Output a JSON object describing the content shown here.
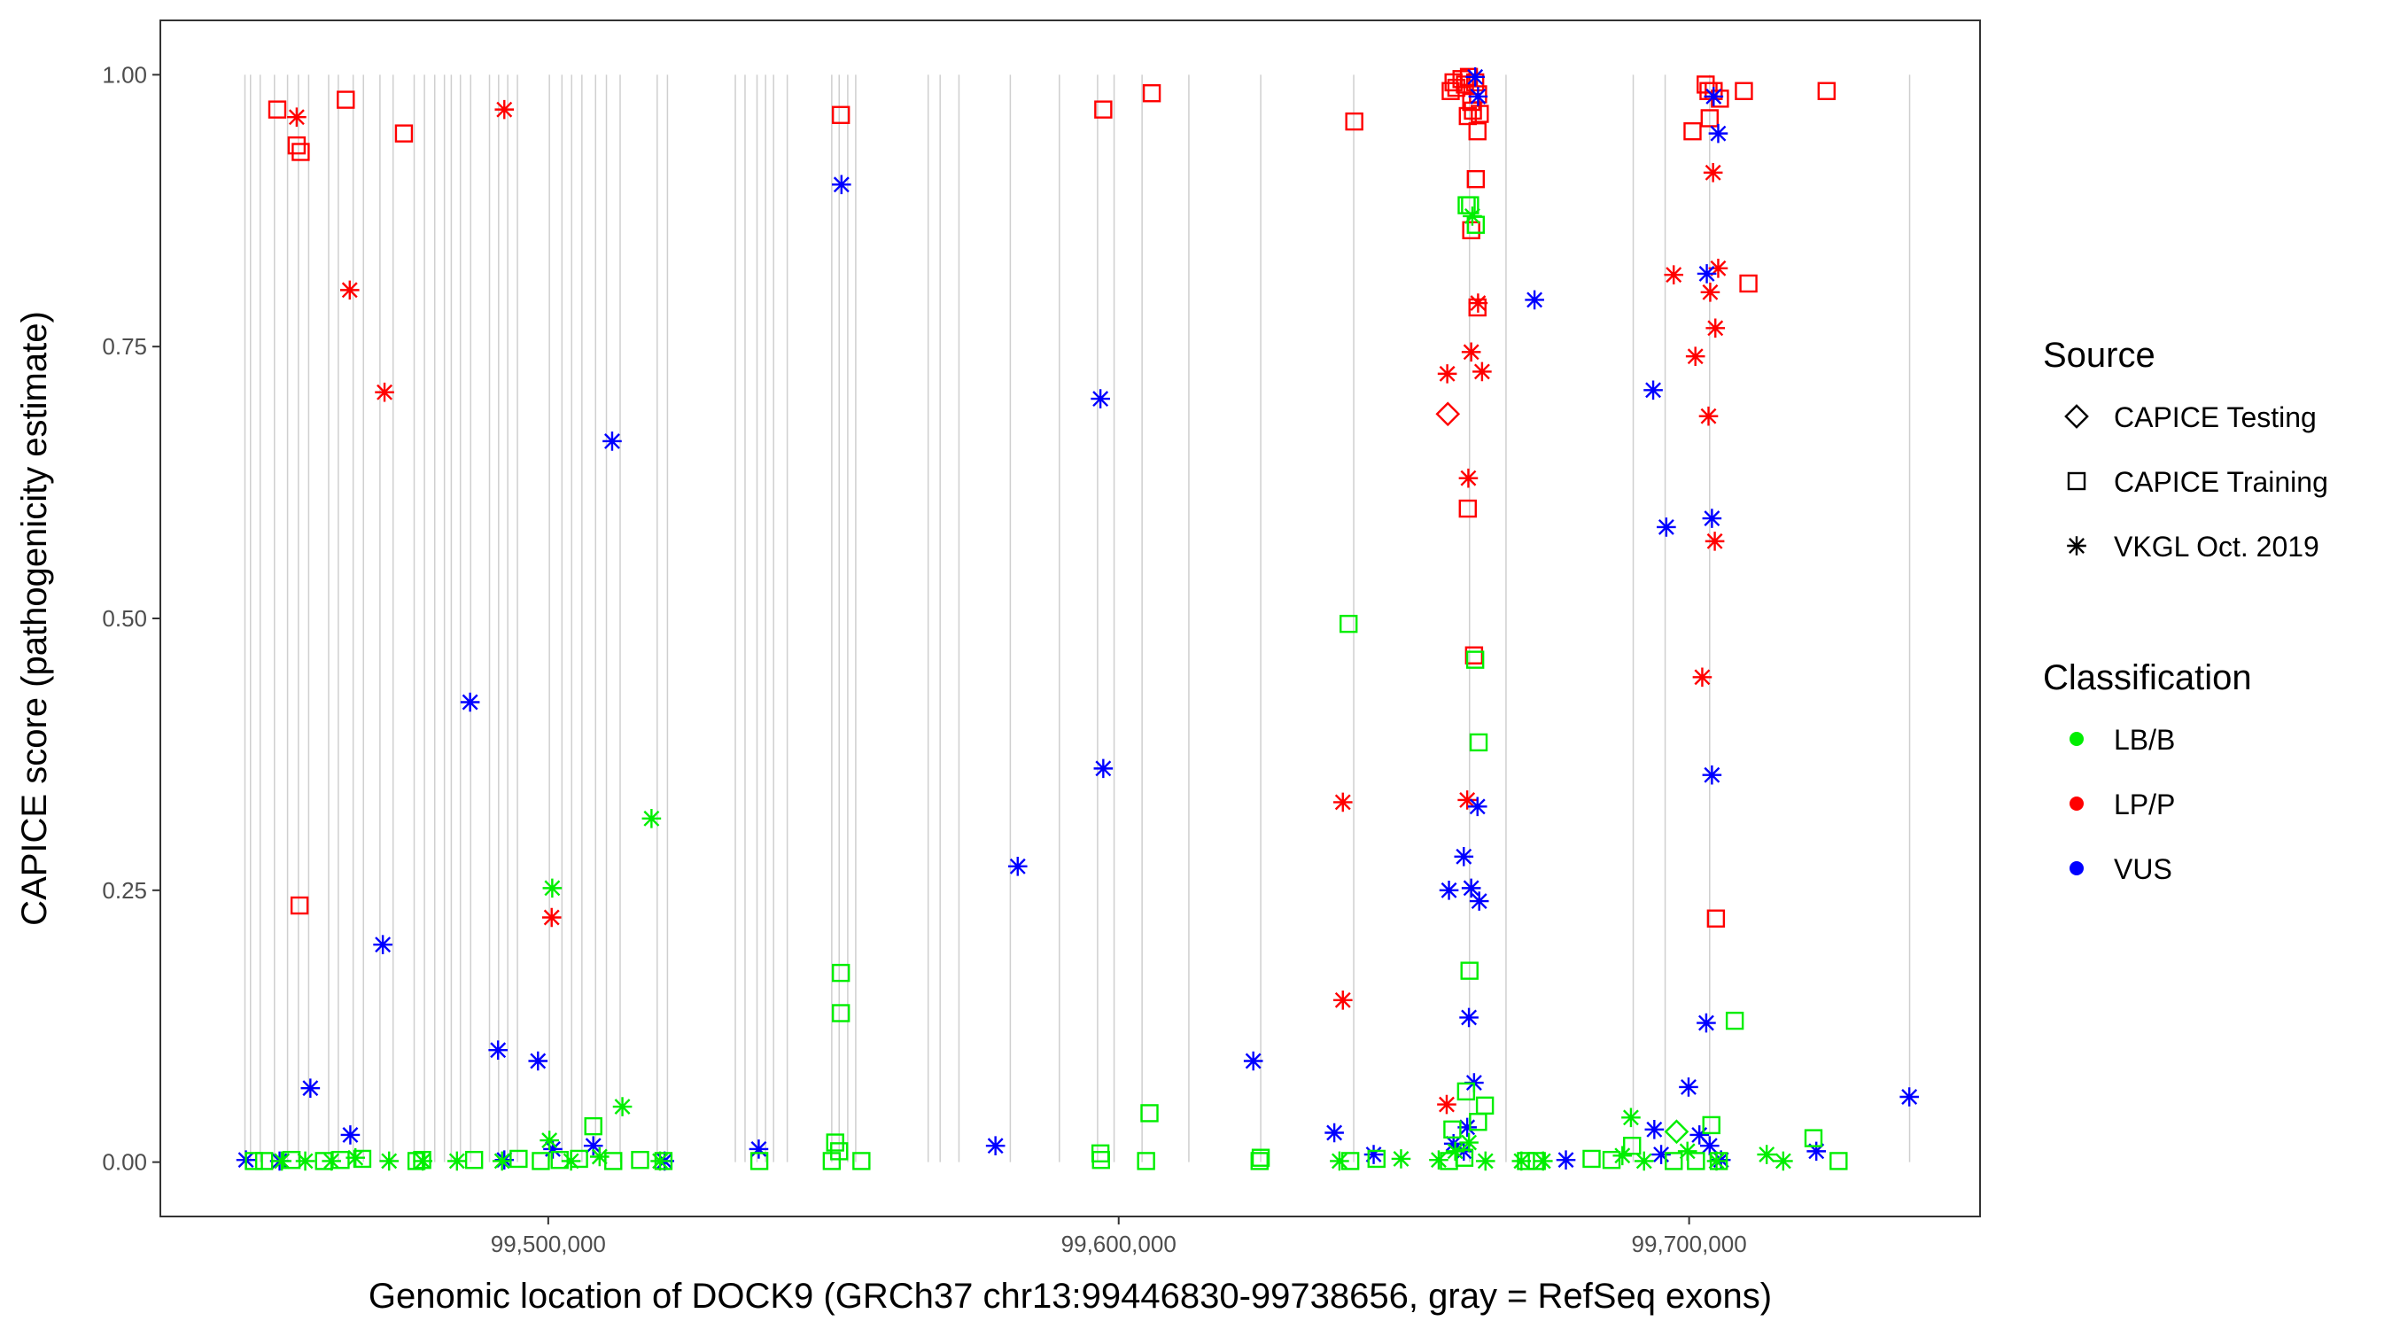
{
  "chart_data": {
    "type": "scatter",
    "xlabel": "Genomic location of DOCK9 (GRCh37 chr13:99446830-99738656, gray = RefSeq exons)",
    "ylabel": "CAPICE score (pathogenicity estimate)",
    "xlim": [
      99432000,
      99751000
    ],
    "ylim": [
      -0.05,
      1.05
    ],
    "x_ticks": [
      {
        "value": 99500000,
        "label": "99,500,000"
      },
      {
        "value": 99600000,
        "label": "99,600,000"
      },
      {
        "value": 99700000,
        "label": "99,700,000"
      }
    ],
    "y_ticks": [
      {
        "value": 0,
        "label": "0.00"
      },
      {
        "value": 0.25,
        "label": "0.25"
      },
      {
        "value": 0.5,
        "label": "0.50"
      },
      {
        "value": 0.75,
        "label": "0.75"
      },
      {
        "value": 1.0,
        "label": "1.00"
      }
    ],
    "exons": [
      99446830,
      99447800,
      99449500,
      99452000,
      99454300,
      99456200,
      99458000,
      99461500,
      99463200,
      99465800,
      99467600,
      99470500,
      99472800,
      99476500,
      99478300,
      99480100,
      99481800,
      99483000,
      99484600,
      99486400,
      99489700,
      99491300,
      99492900,
      99494600,
      99500200,
      99502400,
      99504100,
      99505900,
      99508300,
      99510200,
      99512600,
      99519100,
      99520900,
      99532800,
      99534500,
      99536600,
      99538100,
      99539500,
      99541900,
      99549700,
      99551000,
      99552500,
      99553900,
      99566600,
      99568700,
      99572000,
      99581000,
      99589600,
      99596300,
      99599200,
      99604100,
      99612300,
      99624900,
      99641200,
      99661500,
      99667900,
      99690200,
      99695800,
      99703600,
      99738656
    ],
    "legend": {
      "source_title": "Source",
      "source_items": [
        {
          "label": "CAPICE Testing",
          "shape": "diamond"
        },
        {
          "label": "CAPICE Training",
          "shape": "square"
        },
        {
          "label": "VKGL Oct. 2019",
          "shape": "asterisk"
        }
      ],
      "class_title": "Classification",
      "class_items": [
        {
          "label": "LB/B",
          "color": "#00ee00"
        },
        {
          "label": "LP/P",
          "color": "#ff0000"
        },
        {
          "label": "VUS",
          "color": "#0000ff"
        }
      ]
    },
    "series": [
      {
        "name": "LP/P CAPICE Training",
        "shape": "square",
        "color": "#ff0000",
        "points": [
          [
            99452500,
            0.968
          ],
          [
            99455900,
            0.935
          ],
          [
            99456600,
            0.929
          ],
          [
            99464500,
            0.977
          ],
          [
            99474700,
            0.946
          ],
          [
            99456400,
            0.236
          ],
          [
            99551300,
            0.963
          ],
          [
            99597300,
            0.968
          ],
          [
            99605800,
            0.983
          ],
          [
            99641300,
            0.957
          ],
          [
            99658200,
            0.985
          ],
          [
            99658700,
            0.993
          ],
          [
            99659200,
            0.988
          ],
          [
            99660100,
            0.996
          ],
          [
            99660700,
            0.991
          ],
          [
            99661400,
            0.998
          ],
          [
            99661800,
            0.975
          ],
          [
            99662100,
            0.967
          ],
          [
            99662500,
            0.993
          ],
          [
            99663000,
            0.982
          ],
          [
            99662900,
            0.948
          ],
          [
            99661200,
            0.962
          ],
          [
            99663300,
            0.964
          ],
          [
            99662600,
            0.904
          ],
          [
            99661800,
            0.857
          ],
          [
            99662900,
            0.786
          ],
          [
            99661200,
            0.601
          ],
          [
            99662300,
            0.466
          ],
          [
            99700600,
            0.948
          ],
          [
            99702900,
            0.991
          ],
          [
            99703400,
            0.985
          ],
          [
            99703600,
            0.96
          ],
          [
            99704300,
            0.985
          ],
          [
            99705400,
            0.978
          ],
          [
            99709600,
            0.985
          ],
          [
            99710400,
            0.808
          ],
          [
            99724100,
            0.985
          ],
          [
            99704700,
            0.224
          ]
        ]
      },
      {
        "name": "LP/P VKGL",
        "shape": "asterisk",
        "color": "#ff0000",
        "points": [
          [
            99455900,
            0.961
          ],
          [
            99492300,
            0.968
          ],
          [
            99465200,
            0.802
          ],
          [
            99471300,
            0.708
          ],
          [
            99500600,
            0.225
          ],
          [
            99657600,
            0.725
          ],
          [
            99661800,
            0.745
          ],
          [
            99663000,
            0.79
          ],
          [
            99663700,
            0.727
          ],
          [
            99661300,
            0.629
          ],
          [
            99661100,
            0.333
          ],
          [
            99639300,
            0.331
          ],
          [
            99639300,
            0.149
          ],
          [
            99657500,
            0.053
          ],
          [
            99697300,
            0.816
          ],
          [
            99701100,
            0.741
          ],
          [
            99703700,
            0.8
          ],
          [
            99705100,
            0.822
          ],
          [
            99704600,
            0.767
          ],
          [
            99704200,
            0.91
          ],
          [
            99703400,
            0.686
          ],
          [
            99704500,
            0.571
          ],
          [
            99702300,
            0.446
          ]
        ]
      },
      {
        "name": "LP/P CAPICE Testing",
        "shape": "diamond",
        "color": "#ff0000",
        "points": [
          [
            99657700,
            0.688
          ]
        ]
      },
      {
        "name": "VUS VKGL",
        "shape": "asterisk",
        "color": "#0000ff",
        "points": [
          [
            99447000,
            0.002
          ],
          [
            99452900,
            0.001
          ],
          [
            99458300,
            0.068
          ],
          [
            99465300,
            0.025
          ],
          [
            99471000,
            0.2
          ],
          [
            99486300,
            0.423
          ],
          [
            99491200,
            0.103
          ],
          [
            99498200,
            0.093
          ],
          [
            99500800,
            0.012
          ],
          [
            99507900,
            0.015
          ],
          [
            99511200,
            0.663
          ],
          [
            99492300,
            0.002
          ],
          [
            99520400,
            0.001
          ],
          [
            99536900,
            0.012
          ],
          [
            99551400,
            0.899
          ],
          [
            99578400,
            0.015
          ],
          [
            99582300,
            0.272
          ],
          [
            99596800,
            0.702
          ],
          [
            99597300,
            0.362
          ],
          [
            99623600,
            0.093
          ],
          [
            99637800,
            0.027
          ],
          [
            99644700,
            0.007
          ],
          [
            99658700,
            0.017
          ],
          [
            99657900,
            0.25
          ],
          [
            99660500,
            0.281
          ],
          [
            99661800,
            0.252
          ],
          [
            99663200,
            0.24
          ],
          [
            99662900,
            0.327
          ],
          [
            99661400,
            0.133
          ],
          [
            99662300,
            0.073
          ],
          [
            99661100,
            0.032
          ],
          [
            99660500,
            0.01
          ],
          [
            99662500,
            0.998
          ],
          [
            99663000,
            0.98
          ],
          [
            99672900,
            0.793
          ],
          [
            99678400,
            0.002
          ],
          [
            99693700,
            0.71
          ],
          [
            99693900,
            0.03
          ],
          [
            99699900,
            0.069
          ],
          [
            99696000,
            0.584
          ],
          [
            99703100,
            0.817
          ],
          [
            99704000,
            0.592
          ],
          [
            99704300,
            0.98
          ],
          [
            99705100,
            0.946
          ],
          [
            99704000,
            0.356
          ],
          [
            99703000,
            0.128
          ],
          [
            99703600,
            0.015
          ],
          [
            99701800,
            0.025
          ],
          [
            99705600,
            0.002
          ],
          [
            99695100,
            0.007
          ],
          [
            99722300,
            0.01
          ],
          [
            99738600,
            0.06
          ]
        ]
      },
      {
        "name": "LB/B CAPICE Training",
        "shape": "square",
        "color": "#00ee00",
        "points": [
          [
            99448400,
            0.001
          ],
          [
            99450200,
            0.001
          ],
          [
            99455000,
            0.002
          ],
          [
            99460700,
            0.001
          ],
          [
            99463600,
            0.002
          ],
          [
            99467400,
            0.003
          ],
          [
            99476900,
            0.001
          ],
          [
            99477900,
            0.002
          ],
          [
            99487000,
            0.002
          ],
          [
            99494800,
            0.003
          ],
          [
            99498700,
            0.001
          ],
          [
            99502000,
            0.002
          ],
          [
            99505400,
            0.003
          ],
          [
            99507900,
            0.033
          ],
          [
            99511400,
            0.001
          ],
          [
            99516100,
            0.002
          ],
          [
            99520200,
            0.001
          ],
          [
            99537000,
            0.001
          ],
          [
            99549700,
            0.001
          ],
          [
            99550300,
            0.018
          ],
          [
            99551000,
            0.01
          ],
          [
            99551300,
            0.174
          ],
          [
            99551300,
            0.137
          ],
          [
            99554900,
            0.001
          ],
          [
            99596900,
            0.002
          ],
          [
            99596800,
            0.008
          ],
          [
            99604800,
            0.001
          ],
          [
            99605400,
            0.045
          ],
          [
            99624700,
            0.001
          ],
          [
            99624900,
            0.004
          ],
          [
            99640300,
            0.495
          ],
          [
            99640600,
            0.001
          ],
          [
            99645200,
            0.003
          ],
          [
            99657900,
            0.001
          ],
          [
            99660600,
            0.004
          ],
          [
            99660900,
            0.065
          ],
          [
            99661600,
            0.88
          ],
          [
            99661000,
            0.88
          ],
          [
            99662600,
            0.862
          ],
          [
            99662500,
            0.462
          ],
          [
            99663100,
            0.386
          ],
          [
            99661500,
            0.176
          ],
          [
            99663000,
            0.037
          ],
          [
            99664200,
            0.052
          ],
          [
            99658500,
            0.03
          ],
          [
            99671400,
            0.001
          ],
          [
            99673300,
            0.001
          ],
          [
            99682900,
            0.003
          ],
          [
            99686400,
            0.002
          ],
          [
            99690000,
            0.015
          ],
          [
            99697300,
            0.001
          ],
          [
            99701200,
            0.001
          ],
          [
            99703900,
            0.034
          ],
          [
            99705200,
            0.001
          ],
          [
            99708000,
            0.13
          ],
          [
            99721800,
            0.022
          ],
          [
            99726200,
            0.001
          ]
        ]
      },
      {
        "name": "LB/B VKGL",
        "shape": "asterisk",
        "color": "#00ee00",
        "points": [
          [
            99453300,
            0.001
          ],
          [
            99457400,
            0.001
          ],
          [
            99462000,
            0.001
          ],
          [
            99466200,
            0.004
          ],
          [
            99472100,
            0.001
          ],
          [
            99478000,
            0.001
          ],
          [
            99484000,
            0.001
          ],
          [
            99491900,
            0.001
          ],
          [
            99500200,
            0.02
          ],
          [
            99500700,
            0.252
          ],
          [
            99504000,
            0.001
          ],
          [
            99509000,
            0.005
          ],
          [
            99513000,
            0.051
          ],
          [
            99518100,
            0.316
          ],
          [
            99519600,
            0.001
          ],
          [
            99638700,
            0.001
          ],
          [
            99649500,
            0.003
          ],
          [
            99656100,
            0.002
          ],
          [
            99659000,
            0.01
          ],
          [
            99661400,
            0.018
          ],
          [
            99662000,
            0.87
          ],
          [
            99664300,
            0.001
          ],
          [
            99670600,
            0.001
          ],
          [
            99674400,
            0.001
          ],
          [
            99688300,
            0.006
          ],
          [
            99689800,
            0.041
          ],
          [
            99692100,
            0.001
          ],
          [
            99699700,
            0.01
          ],
          [
            99704800,
            0.001
          ],
          [
            99713600,
            0.007
          ],
          [
            99716500,
            0.001
          ]
        ]
      },
      {
        "name": "LB/B CAPICE Testing",
        "shape": "diamond",
        "color": "#00ee00",
        "points": [
          [
            99697800,
            0.028
          ]
        ]
      }
    ]
  }
}
